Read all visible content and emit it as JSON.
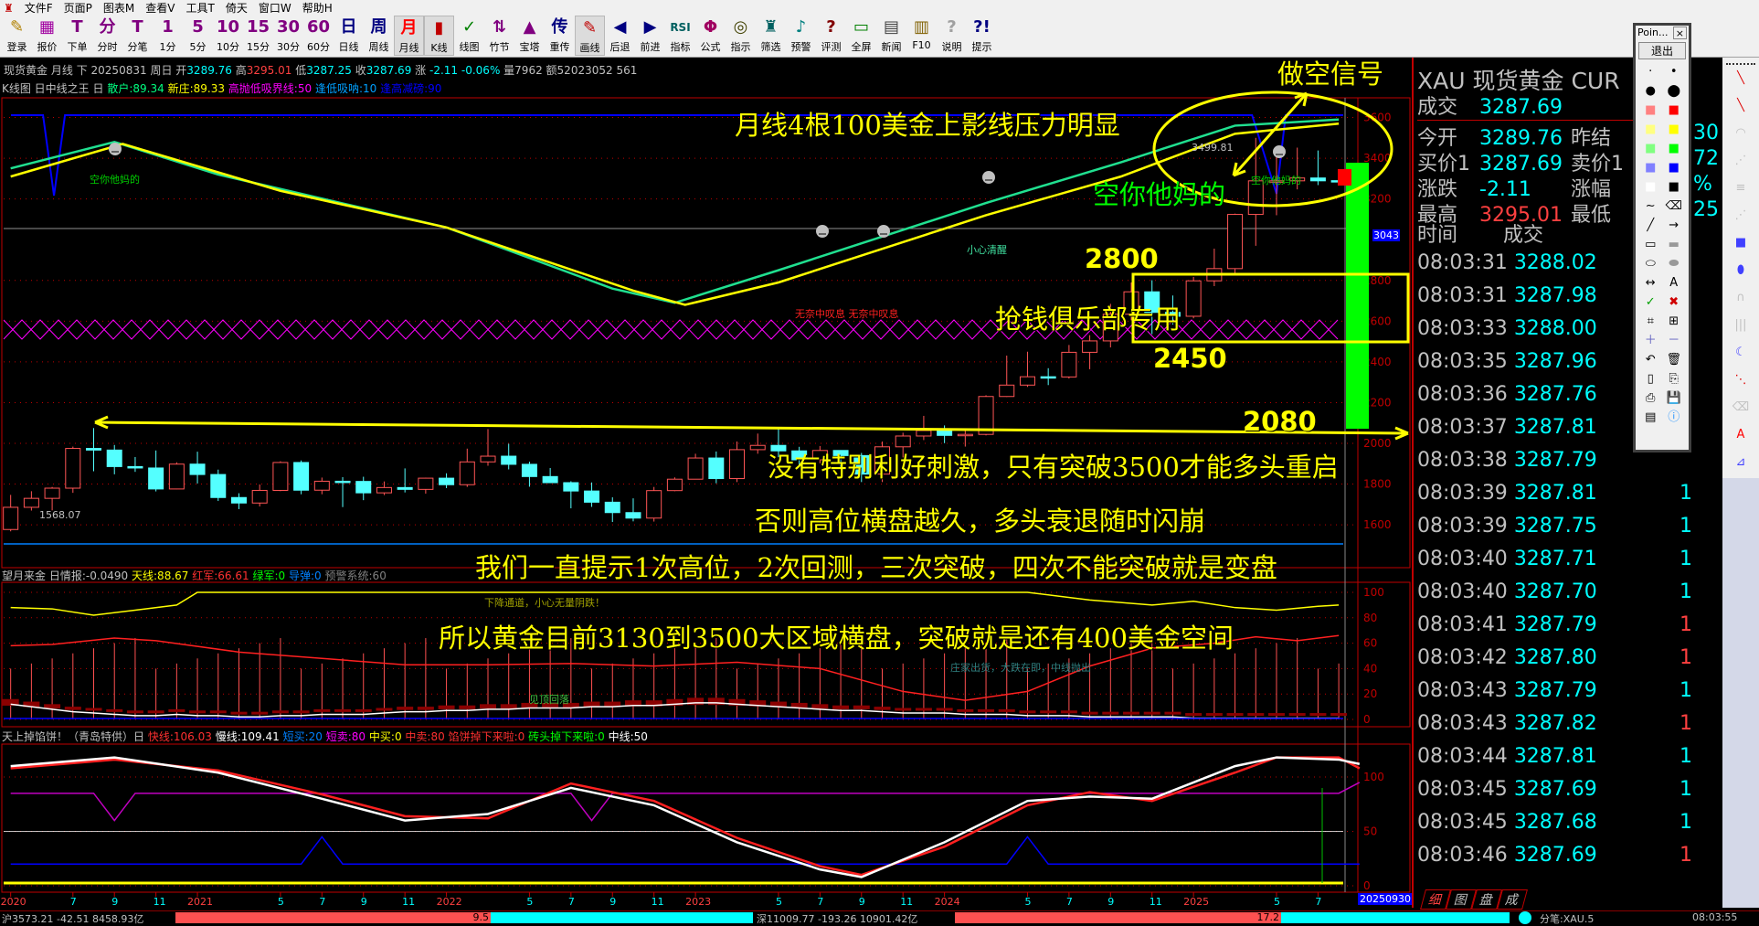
{
  "menu": [
    "文件F",
    "页面P",
    "图表M",
    "查看V",
    "工具T",
    "倚天",
    "窗口W",
    "帮助H"
  ],
  "toolbar": [
    {
      "icon": "✎",
      "label": "登录",
      "color": "#b08000",
      "name": "login"
    },
    {
      "icon": "▦",
      "label": "报价",
      "color": "#a000a0",
      "name": "quote"
    },
    {
      "icon": "T",
      "label": "下单",
      "color": "#800080",
      "name": "order"
    },
    {
      "icon": "分",
      "label": "分时",
      "color": "#800080",
      "name": "minute"
    },
    {
      "icon": "T",
      "label": "分笔",
      "color": "#800080",
      "name": "tick"
    },
    {
      "icon": "1",
      "label": "1分",
      "color": "#800080",
      "name": "1min"
    },
    {
      "icon": "5",
      "label": "5分",
      "color": "#800080",
      "name": "5min"
    },
    {
      "icon": "10",
      "label": "10分",
      "color": "#800080",
      "name": "10min"
    },
    {
      "icon": "15",
      "label": "15分",
      "color": "#800080",
      "name": "15min"
    },
    {
      "icon": "30",
      "label": "30分",
      "color": "#800080",
      "name": "30min"
    },
    {
      "icon": "60",
      "label": "60分",
      "color": "#800080",
      "name": "60min"
    },
    {
      "icon": "日",
      "label": "日线",
      "color": "#000080",
      "name": "daily"
    },
    {
      "icon": "周",
      "label": "周线",
      "color": "#000080",
      "name": "weekly"
    },
    {
      "icon": "月",
      "label": "月线",
      "color": "#ff0000",
      "name": "monthly",
      "active": true
    },
    {
      "icon": "▮",
      "label": "K线",
      "color": "#c00000",
      "name": "kline",
      "active": true
    },
    {
      "icon": "✓",
      "label": "线图",
      "color": "#008000",
      "name": "linechart"
    },
    {
      "icon": "⇅",
      "label": "竹节",
      "color": "#800080",
      "name": "bamboo"
    },
    {
      "icon": "▲",
      "label": "宝塔",
      "color": "#800080",
      "name": "tower"
    },
    {
      "icon": "传",
      "label": "重传",
      "color": "#000080",
      "name": "reload"
    },
    {
      "icon": "✎",
      "label": "画线",
      "color": "#c00000",
      "name": "draw",
      "active": true
    },
    {
      "icon": "◀",
      "label": "后退",
      "color": "#000080",
      "name": "back"
    },
    {
      "icon": "▶",
      "label": "前进",
      "color": "#000080",
      "name": "forward"
    },
    {
      "icon": "RSI",
      "label": "指标",
      "color": "#006060",
      "name": "indicator"
    },
    {
      "icon": "Φ",
      "label": "公式",
      "color": "#a00060",
      "name": "formula"
    },
    {
      "icon": "◎",
      "label": "指示",
      "color": "#404000",
      "name": "hint"
    },
    {
      "icon": "♜",
      "label": "筛选",
      "color": "#006060",
      "name": "filter"
    },
    {
      "icon": "♪",
      "label": "预警",
      "color": "#008080",
      "name": "alert"
    },
    {
      "icon": "?",
      "label": "评测",
      "color": "#800000",
      "name": "evaluate"
    },
    {
      "icon": "▭",
      "label": "全屏",
      "color": "#008000",
      "name": "fullscreen"
    },
    {
      "icon": "▤",
      "label": "新闻",
      "color": "#404040",
      "name": "news"
    },
    {
      "icon": "▥",
      "label": "F10",
      "color": "#806000",
      "name": "f10"
    },
    {
      "icon": "?",
      "label": "说明",
      "color": "#a0a0a0",
      "name": "help"
    },
    {
      "icon": "?!",
      "label": "提示",
      "color": "#000080",
      "name": "tips"
    }
  ],
  "info": {
    "name": "现货黄金",
    "period": "月线",
    "dir": "下",
    "date": "20250831",
    "weekday": "周日",
    "open_lbl": "开",
    "open": "3289.76",
    "high_lbl": "高",
    "high": "3295.01",
    "low_lbl": "低",
    "low": "3287.25",
    "close_lbl": "收",
    "close": "3287.69",
    "chg_lbl": "涨",
    "chg": "-2.11",
    "pct": "-0.06%",
    "vol": "量7962",
    "amt": "额52023052 561"
  },
  "indicator_line": {
    "prefix": "K线图 日中线之王 日",
    "a": "散户:89.34",
    "b": "新庄:89.33",
    "c": "高抛低吸界线:50",
    "d": "逢低吸呐:10",
    "e": "逢高减磅:90"
  },
  "panel1_header": {
    "prefix": "望月来金 日情报:-0.0490",
    "a": "天线:88.67",
    "b": "红军:66.61",
    "c": "绿军:0",
    "d": "导弹:0",
    "e": "预警系统:60"
  },
  "panel2_header": {
    "prefix": "天上掉馅饼！（青岛特供）日",
    "a": "快线:106.03",
    "b": "慢线:109.41",
    "c": "短买:20",
    "d": "短卖:80",
    "e": "中买:0",
    "f": "中卖:80",
    "g": "馅饼掉下来啦:0",
    "h": "砖头掉下来啦:0",
    "i": "中线:50"
  },
  "annotations": {
    "sell_signal": "做空信号",
    "upper_shadow": "月线4根100美金上影线压力明显",
    "short_big": "空你他妈的",
    "lvl_2800": "2800",
    "club": "抢钱俱乐部专用",
    "lvl_2450": "2450",
    "lvl_2080": "2080",
    "line1": "没有特别利好刺激，只有突破3500才能多头重启",
    "line2": "否则高位横盘越久，多头衰退随时闪崩",
    "line3": "我们一直提示1次高位，2次回测，三次突破，四次不能突破就是变盘",
    "line4": "所以黄金目前3130到3500大区域横盘，突破就是还有400美金空间"
  },
  "chart_labels": {
    "short_small1": "空你他妈的",
    "short_small2": "空你他妈的",
    "careful": "小心清醒",
    "sigh": "无奈中叹息  无奈中叹息",
    "low_mark": "1568.07",
    "high_mark": "3499.81",
    "cursor_price": "3043",
    "down_channel": "下降通道，小心无量阴跌！",
    "top_fall": "见顶回落",
    "crash_soon": "庄家出货，大跌在即，中线抛出",
    "cursor_date": "20250930"
  },
  "chart_data": {
    "type": "candlestick",
    "first_month": "2020-04",
    "ohlc": [
      [
        1577,
        1747,
        1568,
        1686
      ],
      [
        1686,
        1765,
        1670,
        1730
      ],
      [
        1730,
        1786,
        1671,
        1780
      ],
      [
        1780,
        1984,
        1757,
        1975
      ],
      [
        1975,
        2075,
        1863,
        1967
      ],
      [
        1967,
        1992,
        1848,
        1886
      ],
      [
        1886,
        1933,
        1860,
        1879
      ],
      [
        1879,
        1965,
        1764,
        1776
      ],
      [
        1776,
        1907,
        1775,
        1898
      ],
      [
        1898,
        1959,
        1803,
        1847
      ],
      [
        1847,
        1871,
        1717,
        1734
      ],
      [
        1734,
        1755,
        1677,
        1707
      ],
      [
        1707,
        1798,
        1690,
        1769
      ],
      [
        1769,
        1912,
        1765,
        1906
      ],
      [
        1906,
        1916,
        1750,
        1770
      ],
      [
        1770,
        1832,
        1750,
        1814
      ],
      [
        1814,
        1834,
        1687,
        1813
      ],
      [
        1813,
        1836,
        1721,
        1757
      ],
      [
        1757,
        1813,
        1746,
        1783
      ],
      [
        1783,
        1877,
        1759,
        1774
      ],
      [
        1774,
        1831,
        1753,
        1829
      ],
      [
        1829,
        1853,
        1780,
        1797
      ],
      [
        1797,
        1974,
        1786,
        1909
      ],
      [
        1909,
        2070,
        1890,
        1937
      ],
      [
        1937,
        1998,
        1872,
        1897
      ],
      [
        1897,
        1910,
        1787,
        1837
      ],
      [
        1837,
        1879,
        1805,
        1807
      ],
      [
        1807,
        1814,
        1681,
        1766
      ],
      [
        1766,
        1808,
        1688,
        1711
      ],
      [
        1711,
        1735,
        1614,
        1660
      ],
      [
        1660,
        1730,
        1617,
        1633
      ],
      [
        1633,
        1786,
        1616,
        1768
      ],
      [
        1768,
        1833,
        1765,
        1824
      ],
      [
        1824,
        1949,
        1823,
        1928
      ],
      [
        1928,
        1960,
        1804,
        1827
      ],
      [
        1827,
        2009,
        1810,
        1969
      ],
      [
        1969,
        2048,
        1949,
        1990
      ],
      [
        1990,
        2079,
        1932,
        1963
      ],
      [
        1963,
        1983,
        1893,
        1919
      ],
      [
        1919,
        1987,
        1902,
        1965
      ],
      [
        1965,
        1966,
        1884,
        1940
      ],
      [
        1940,
        1953,
        1810,
        1849
      ],
      [
        1849,
        2009,
        1810,
        1983
      ],
      [
        1983,
        2052,
        1931,
        2036
      ],
      [
        2036,
        2135,
        2016,
        2063
      ],
      [
        2063,
        2088,
        2001,
        2039
      ],
      [
        2039,
        2065,
        1984,
        2044
      ],
      [
        2044,
        2236,
        2039,
        2230
      ],
      [
        2230,
        2431,
        2228,
        2286
      ],
      [
        2286,
        2450,
        2277,
        2327
      ],
      [
        2327,
        2369,
        2286,
        2326
      ],
      [
        2326,
        2483,
        2318,
        2447
      ],
      [
        2447,
        2531,
        2364,
        2503
      ],
      [
        2503,
        2685,
        2471,
        2634
      ],
      [
        2634,
        2790,
        2604,
        2744
      ],
      [
        2744,
        2801,
        2536,
        2643
      ],
      [
        2643,
        2726,
        2583,
        2624
      ],
      [
        2624,
        2817,
        2614,
        2798
      ],
      [
        2798,
        2956,
        2772,
        2858
      ],
      [
        2858,
        3128,
        2832,
        3124
      ],
      [
        3124,
        3500,
        2970,
        3289
      ],
      [
        3289,
        3435,
        3120,
        3289
      ],
      [
        3289,
        3452,
        3247,
        3303
      ],
      [
        3303,
        3438,
        3268,
        3289
      ],
      [
        3289.76,
        3295.01,
        3287.25,
        3287.69
      ]
    ],
    "price_ticks": [
      3600,
      3400,
      3200,
      2800,
      2600,
      2400,
      2200,
      2000,
      1800,
      1600
    ],
    "panel1_ticks": [
      100,
      80,
      60,
      40,
      20,
      0
    ],
    "panel2_ticks": [
      100,
      50,
      0
    ],
    "date_ticks": [
      [
        "2020",
        3
      ],
      [
        "7",
        6
      ],
      [
        "9",
        8
      ],
      [
        "11",
        10
      ],
      [
        "2021",
        12
      ],
      [
        "5",
        16
      ],
      [
        "7",
        18
      ],
      [
        "9",
        20
      ],
      [
        "11",
        22
      ],
      [
        "2022",
        24
      ],
      [
        "5",
        28
      ],
      [
        "7",
        30
      ],
      [
        "9",
        32
      ],
      [
        "11",
        34
      ],
      [
        "2023",
        36
      ],
      [
        "5",
        40
      ],
      [
        "7",
        42
      ],
      [
        "9",
        44
      ],
      [
        "11",
        46
      ],
      [
        "2024",
        48
      ],
      [
        "5",
        52
      ],
      [
        "7",
        54
      ],
      [
        "9",
        56
      ],
      [
        "11",
        58
      ],
      [
        "2025",
        60
      ],
      [
        "5",
        64
      ],
      [
        "7",
        66
      ]
    ],
    "main_green": [
      [
        0,
        3350
      ],
      [
        5,
        3480
      ],
      [
        10,
        3320
      ],
      [
        21,
        3060
      ],
      [
        29,
        2760
      ],
      [
        32,
        2690
      ],
      [
        37,
        2850
      ],
      [
        47,
        3180
      ],
      [
        53.5,
        3380
      ],
      [
        59,
        3560
      ],
      [
        64,
        3590
      ]
    ],
    "main_yellow": [
      [
        0,
        3310
      ],
      [
        5.4,
        3470
      ],
      [
        13,
        3240
      ],
      [
        21,
        3060
      ],
      [
        30,
        2750
      ],
      [
        32.5,
        2680
      ],
      [
        37,
        2790
      ],
      [
        47,
        3120
      ],
      [
        53.5,
        3310
      ],
      [
        59,
        3520
      ],
      [
        64,
        3570
      ]
    ],
    "p1_red": [
      [
        0,
        58
      ],
      [
        2,
        59
      ],
      [
        5,
        64
      ],
      [
        7,
        62
      ],
      [
        11,
        53
      ],
      [
        15,
        48
      ],
      [
        19,
        43
      ],
      [
        23,
        43
      ],
      [
        27,
        44
      ],
      [
        31,
        42
      ],
      [
        35,
        45
      ],
      [
        39,
        40
      ],
      [
        43,
        22
      ],
      [
        46,
        15
      ],
      [
        49,
        22
      ],
      [
        52,
        42
      ],
      [
        55,
        56
      ],
      [
        58,
        60
      ],
      [
        60,
        65
      ],
      [
        62,
        62
      ],
      [
        64,
        66
      ]
    ],
    "p1_yellow": [
      [
        0,
        88
      ],
      [
        2,
        87
      ],
      [
        4,
        82
      ],
      [
        6,
        86
      ],
      [
        8,
        90
      ],
      [
        9,
        100
      ],
      [
        49,
        100
      ],
      [
        52,
        94
      ],
      [
        55,
        90
      ],
      [
        57,
        93
      ],
      [
        59,
        88
      ],
      [
        61,
        86
      ],
      [
        63,
        89
      ],
      [
        64,
        90
      ]
    ],
    "p1_hist": [
      12,
      10,
      8,
      6,
      5,
      4,
      3,
      3,
      4,
      3,
      3,
      2,
      2,
      3,
      3,
      4,
      4,
      4,
      5,
      6,
      6,
      7,
      7,
      8,
      8,
      9,
      9,
      9,
      10,
      10,
      11,
      11,
      12,
      13,
      13,
      12,
      11,
      10,
      9,
      8,
      7,
      7,
      6,
      5,
      5,
      5,
      4,
      4,
      4,
      3,
      3,
      3,
      2,
      2,
      2,
      2,
      2,
      1,
      1,
      1,
      1,
      1,
      1,
      1,
      1
    ],
    "p2_white": [
      [
        0,
        110
      ],
      [
        5,
        118
      ],
      [
        10,
        104
      ],
      [
        15,
        80
      ],
      [
        19,
        60
      ],
      [
        23,
        66
      ],
      [
        27,
        90
      ],
      [
        31,
        74
      ],
      [
        35,
        40
      ],
      [
        39,
        15
      ],
      [
        41,
        8
      ],
      [
        45,
        40
      ],
      [
        49,
        78
      ],
      [
        52,
        82
      ],
      [
        55,
        80
      ],
      [
        59,
        110
      ],
      [
        61,
        118
      ],
      [
        64,
        116
      ],
      [
        65,
        112
      ]
    ],
    "p2_red": [
      [
        0,
        108
      ],
      [
        5,
        116
      ],
      [
        10,
        106
      ],
      [
        15,
        84
      ],
      [
        19,
        64
      ],
      [
        23,
        62
      ],
      [
        27,
        94
      ],
      [
        31,
        78
      ],
      [
        35,
        44
      ],
      [
        39,
        18
      ],
      [
        41,
        10
      ],
      [
        45,
        36
      ],
      [
        49,
        74
      ],
      [
        52,
        86
      ],
      [
        55,
        78
      ],
      [
        59,
        104
      ],
      [
        61,
        118
      ],
      [
        64,
        118
      ],
      [
        65,
        108
      ]
    ],
    "p2_magenta": [
      [
        0,
        85
      ],
      [
        4,
        85
      ],
      [
        5,
        60
      ],
      [
        6,
        85
      ],
      [
        27,
        85
      ],
      [
        28,
        60
      ],
      [
        29,
        85
      ],
      [
        64,
        85
      ],
      [
        65,
        95
      ]
    ],
    "p2_blue": [
      [
        0,
        20
      ],
      [
        14,
        20
      ],
      [
        15,
        45
      ],
      [
        16,
        20
      ],
      [
        48,
        20
      ],
      [
        49,
        45
      ],
      [
        50,
        20
      ],
      [
        65,
        20
      ]
    ]
  },
  "quote": {
    "title": "XAU 现货黄金",
    "cur": "CUR",
    "rows": [
      {
        "l": "成交",
        "v": "3287.69",
        "c": "#00ffff"
      },
      {
        "l": "今开",
        "v": "3289.76",
        "c": "#00ffff",
        "l2": "昨结",
        "v2": "30"
      },
      {
        "l": "买价1",
        "v": "3287.69",
        "c": "#00ffff",
        "l2": "卖价1",
        "v2": "72"
      },
      {
        "l": "涨跌",
        "v": "-2.11",
        "c": "#00ffff",
        "l2": "涨幅",
        "v2": "%"
      },
      {
        "l": "最高",
        "v": "3295.01",
        "c": "#ff4040",
        "l2": "最低",
        "v2": "25"
      }
    ],
    "ticks_header": [
      "时间",
      "成交"
    ],
    "ticks": [
      [
        "08:03:31",
        "3288.02",
        ""
      ],
      [
        "08:03:31",
        "3287.98",
        ""
      ],
      [
        "08:03:33",
        "3288.00",
        ""
      ],
      [
        "08:03:35",
        "3287.96",
        ""
      ],
      [
        "08:03:36",
        "3287.76",
        ""
      ],
      [
        "08:03:37",
        "3287.81",
        ""
      ],
      [
        "08:03:38",
        "3287.79",
        ""
      ],
      [
        "08:03:39",
        "3287.81",
        "1"
      ],
      [
        "08:03:39",
        "3287.75",
        "1"
      ],
      [
        "08:03:40",
        "3287.71",
        "1"
      ],
      [
        "08:03:40",
        "3287.70",
        "1"
      ],
      [
        "08:03:41",
        "3287.79",
        "1"
      ],
      [
        "08:03:42",
        "3287.80",
        "1"
      ],
      [
        "08:03:43",
        "3287.79",
        "1"
      ],
      [
        "08:03:43",
        "3287.82",
        "1"
      ],
      [
        "08:03:44",
        "3287.81",
        "1"
      ],
      [
        "08:03:45",
        "3287.69",
        "1"
      ],
      [
        "08:03:45",
        "3287.68",
        "1"
      ],
      [
        "08:03:46",
        "3287.69",
        "1"
      ]
    ],
    "tick_vol_colors": [
      "",
      "",
      "",
      "",
      "",
      "",
      "",
      "#00ffff",
      "#00ffff",
      "#00ffff",
      "#00ffff",
      "#ff4040",
      "#ff4040",
      "#00ffff",
      "#ff4040",
      "#00ffff",
      "#00ffff",
      "#00ffff",
      "#ff4040"
    ],
    "tabs": [
      "细",
      "图",
      "盘",
      "成"
    ]
  },
  "toolbox": {
    "title": "Poin...",
    "exit": "退出"
  },
  "status": {
    "sh": "沪3573.21 -42.51 8458.93亿",
    "sh_bar": "9.5",
    "sz": "深11009.77 -193.26 10901.42亿",
    "sz_bar": "17.2",
    "tick": "分笔:XAU.5",
    "time": "08:03:55"
  },
  "colors": {
    "up": "#ff5555",
    "down": "#54ffff",
    "grid": "#c00000",
    "annotation": "#ffff00"
  }
}
